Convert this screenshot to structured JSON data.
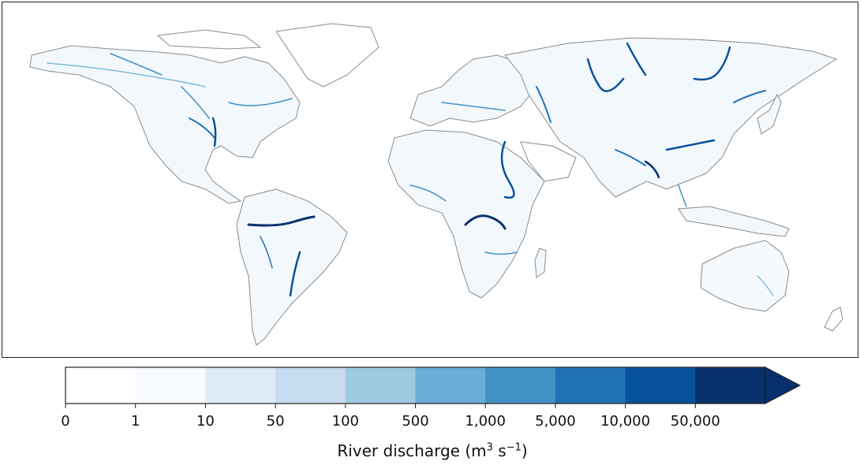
{
  "colorbar": {
    "ticks": [
      "0",
      "1",
      "10",
      "50",
      "100",
      "500",
      "1,000",
      "5,000",
      "10,000",
      "50,000"
    ],
    "colors": [
      "#ffffff",
      "#f7fbff",
      "#deebf7",
      "#c6dbef",
      "#9ecae1",
      "#6baed6",
      "#4292c6",
      "#2171b5",
      "#08519c",
      "#08306b"
    ],
    "extend_color": "#08306b",
    "title_text": "River discharge (m",
    "title_exp1": "3",
    "title_mid": " s",
    "title_exp2": "−1",
    "title_end": ")"
  },
  "map": {
    "coastline_color": "#8a8a8a",
    "land_fill": "#f4f8fc"
  }
}
